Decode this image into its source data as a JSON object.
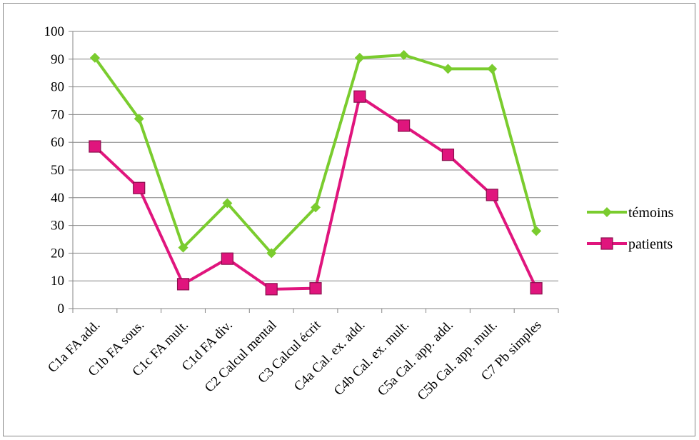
{
  "chart_data": {
    "type": "line",
    "categories": [
      "C1a FA add.",
      "C1b FA sous.",
      "C1c FA mult.",
      "C1d FA div.",
      "C2 Calcul mental",
      "C3 Calcul écrit",
      "C4a Cal. ex. add.",
      "C4b Cal. ex. mult.",
      "C5a Cal. app. add.",
      "C5b Cal. app. mult.",
      "C7 Pb simples"
    ],
    "series": [
      {
        "name": "témoins",
        "color": "#7acc2e",
        "marker": "diamond",
        "values": [
          90.5,
          68.5,
          22,
          38,
          20,
          36.5,
          90.5,
          91.5,
          86.5,
          86.5,
          28
        ]
      },
      {
        "name": "patients",
        "color": "#e0157d",
        "marker": "square",
        "values": [
          58.5,
          43.5,
          8.8,
          18,
          7,
          7.3,
          76.5,
          66,
          55.5,
          41,
          7.3
        ]
      }
    ],
    "yticks": [
      0,
      10,
      20,
      30,
      40,
      50,
      60,
      70,
      80,
      90,
      100
    ],
    "ylim": [
      0,
      100
    ],
    "grid": true,
    "legend_position": "right"
  }
}
